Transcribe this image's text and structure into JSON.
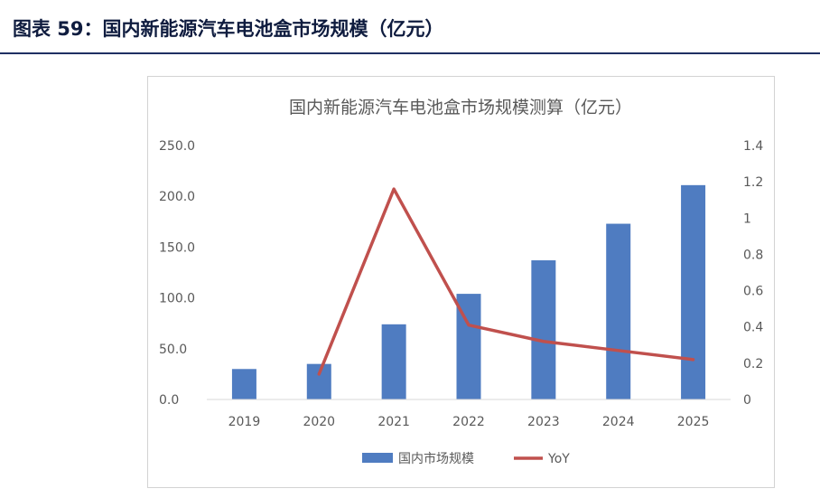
{
  "caption": "图表 59：国内新能源汽车电池盒市场规模（亿元）",
  "chart_data": {
    "type": "bar",
    "title": "国内新能源汽车电池盒市场规模测算（亿元）",
    "categories": [
      "2019",
      "2020",
      "2021",
      "2022",
      "2023",
      "2024",
      "2025"
    ],
    "series": [
      {
        "name": "国内市场规模",
        "type": "bar",
        "axis": "left",
        "color": "#4f7cc1",
        "values": [
          30,
          35,
          74,
          104,
          137,
          173,
          211
        ]
      },
      {
        "name": "YoY",
        "type": "line",
        "axis": "right",
        "color": "#c0504d",
        "values": [
          null,
          0.14,
          1.16,
          0.41,
          0.32,
          0.27,
          0.22
        ]
      }
    ],
    "y_left": {
      "ylim": [
        0,
        250
      ],
      "ticks": [
        "0.0",
        "50.0",
        "100.0",
        "150.0",
        "200.0",
        "250.0"
      ]
    },
    "y_right": {
      "ylim": [
        0,
        1.4
      ],
      "ticks": [
        "0",
        "0.2",
        "0.4",
        "0.6",
        "0.8",
        "1",
        "1.2",
        "1.4"
      ]
    },
    "grid": false,
    "legend": "bottom"
  }
}
